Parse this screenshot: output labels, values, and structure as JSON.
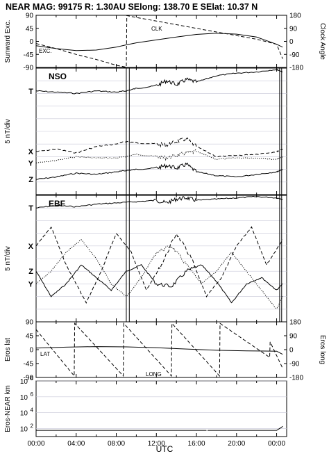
{
  "header": {
    "title": "NEAR MAG: 99175  R: 1.30AU  SElong: 138.70 E  SElat:  10.37 N"
  },
  "colors": {
    "line": "#000000",
    "grid": "#c8c8d8",
    "background": "#ffffff"
  },
  "chart_data": [
    {
      "type": "line",
      "panel": "sunward-clock",
      "ylabel_left": "Sunward Exc.",
      "ylabel_right": "Clock Angle",
      "yticks_left": [
        "90",
        "45",
        "0",
        "-45",
        "-90"
      ],
      "yticks_right": [
        "180",
        "90",
        "0",
        "-90",
        "-180"
      ],
      "ylim_left": [
        -90,
        90
      ],
      "ylim_right": [
        -180,
        180
      ],
      "xlim": [
        0,
        25
      ],
      "annotations": [
        "CLK",
        "EXC."
      ],
      "series": [
        {
          "name": "EXC.",
          "style": "solid",
          "x": [
            0,
            2,
            4,
            6,
            8,
            9,
            10,
            12,
            14,
            16,
            18,
            20,
            22,
            24,
            24.6
          ],
          "y": [
            -15,
            -25,
            -32,
            -30,
            -20,
            -12,
            -5,
            5,
            15,
            24,
            28,
            25,
            15,
            -10,
            -20
          ]
        },
        {
          "name": "CLK",
          "style": "dashed",
          "x": [
            0,
            2,
            4,
            6,
            8,
            9.0,
            9.05,
            10,
            12,
            14,
            16,
            18,
            20,
            22,
            24,
            24.6
          ],
          "y": [
            -15,
            -50,
            -90,
            -125,
            -165,
            -178,
            178,
            165,
            140,
            115,
            90,
            65,
            40,
            15,
            -20,
            -120
          ]
        }
      ]
    },
    {
      "type": "line",
      "panel": "NSO",
      "label": "NSO",
      "ylabel_left": "5 nT/div",
      "component_labels": [
        "T",
        "X",
        "Y",
        "Z"
      ],
      "xlim": [
        0,
        25
      ],
      "series": [
        {
          "name": "T",
          "style": "solid",
          "x": [
            0,
            2,
            4,
            6,
            8,
            9,
            10,
            12,
            13,
            14,
            15,
            16,
            18,
            20,
            22,
            24,
            24.6
          ],
          "y": [
            -18,
            -19,
            -20,
            -18,
            -19,
            -18,
            -16,
            -14,
            -10,
            -13,
            -9,
            -11,
            -6,
            -4,
            -3,
            -1,
            -3
          ]
        },
        {
          "name": "X",
          "style": "dashed",
          "x": [
            0,
            2,
            4,
            6,
            8,
            9,
            10,
            12,
            13,
            14,
            15,
            16,
            18,
            20,
            22,
            24,
            24.6
          ],
          "y": [
            -66,
            -64,
            -67,
            -62,
            -60,
            -58,
            -59,
            -60,
            -61,
            -58,
            -56,
            -62,
            -70,
            -69,
            -68,
            -66,
            -64
          ]
        },
        {
          "name": "Y",
          "style": "dotted",
          "x": [
            0,
            2,
            4,
            6,
            8,
            9,
            10,
            12,
            13,
            14,
            15,
            16,
            18,
            20,
            22,
            24,
            24.6
          ],
          "y": [
            -75,
            -73,
            -70,
            -71,
            -71,
            -70,
            -68,
            -70,
            -71,
            -69,
            -67,
            -66,
            -72,
            -71,
            -71,
            -72,
            -70
          ]
        },
        {
          "name": "Z",
          "style": "solid",
          "x": [
            0,
            2,
            4,
            6,
            8,
            9,
            10,
            12,
            13,
            14,
            15,
            16,
            18,
            20,
            22,
            24,
            24.6
          ],
          "y": [
            -88,
            -86,
            -83,
            -84,
            -82,
            -81,
            -80,
            -79,
            -77,
            -79,
            -76,
            -82,
            -85,
            -86,
            -84,
            -82,
            -80
          ]
        }
      ]
    },
    {
      "type": "line",
      "panel": "EBF",
      "label": "EBF",
      "ylabel_left": "5 nT/div",
      "component_labels": [
        "T",
        "X",
        "Y",
        "Z"
      ],
      "xlim": [
        0,
        25
      ],
      "series": [
        {
          "name": "T",
          "style": "solid",
          "x": [
            0,
            2,
            4,
            6,
            8,
            10,
            12,
            13,
            14,
            15,
            16,
            18,
            20,
            22,
            24,
            24.6
          ],
          "y": [
            -10,
            -8,
            -9,
            -7,
            -6,
            -5,
            -4,
            -6,
            -3,
            -2,
            -4,
            -3,
            -2,
            -1,
            -2,
            -3
          ]
        },
        {
          "name": "X",
          "style": "dashed",
          "x": [
            0,
            1.5,
            3,
            5,
            6.5,
            8,
            9.5,
            11,
            12.5,
            14,
            15.5,
            17,
            18.5,
            20,
            21.5,
            23,
            24.6
          ],
          "y": [
            -40,
            -25,
            -55,
            -85,
            -60,
            -30,
            -45,
            -75,
            -55,
            -30,
            -50,
            -80,
            -65,
            -40,
            -25,
            -55,
            -35
          ]
        },
        {
          "name": "Y",
          "style": "dotted",
          "x": [
            0,
            1.5,
            3,
            4.5,
            6,
            7.5,
            9,
            10.5,
            12,
            13.5,
            15,
            16.5,
            18,
            19.5,
            21,
            22.5,
            24,
            24.6
          ],
          "y": [
            -70,
            -60,
            -45,
            -35,
            -50,
            -70,
            -80,
            -65,
            -45,
            -40,
            -55,
            -70,
            -60,
            -45,
            -60,
            -75,
            -90,
            -80
          ]
        },
        {
          "name": "Z",
          "style": "solid",
          "x": [
            0,
            1.5,
            3,
            4.5,
            6,
            7.5,
            9,
            10.5,
            12,
            13.5,
            15,
            16.5,
            18,
            19.5,
            21,
            22.5,
            24,
            24.6
          ],
          "y": [
            -60,
            -80,
            -70,
            -55,
            -65,
            -75,
            -60,
            -55,
            -70,
            -72,
            -60,
            -55,
            -68,
            -85,
            -70,
            -65,
            -75,
            -70
          ]
        }
      ]
    },
    {
      "type": "line",
      "panel": "eros-lat-long",
      "ylabel_left": "Eros lat",
      "ylabel_right": "Eros long",
      "yticks_left": [
        "90",
        "45",
        "0",
        "-45",
        "-90"
      ],
      "yticks_right": [
        "180",
        "90",
        "0",
        "-90",
        "-180"
      ],
      "ylim_left": [
        -90,
        90
      ],
      "ylim_right": [
        -180,
        180
      ],
      "xlim": [
        0,
        25
      ],
      "annotations": [
        "LAT",
        "LONG"
      ],
      "series": [
        {
          "name": "LAT",
          "style": "solid",
          "x": [
            0,
            3,
            6,
            9,
            12,
            15,
            18,
            21,
            24,
            24.6
          ],
          "y": [
            5,
            8,
            10,
            9,
            6,
            2,
            -2,
            -4,
            -5,
            -15
          ]
        },
        {
          "name": "LONG",
          "style": "dashed",
          "x": [
            0,
            3.8,
            3.85,
            8.7,
            8.75,
            13.5,
            13.55,
            18.3,
            18.35,
            23.3,
            23.35,
            24.6
          ],
          "y": [
            130,
            -170,
            170,
            -170,
            170,
            -170,
            170,
            -170,
            170,
            -50,
            50,
            -120
          ]
        }
      ]
    },
    {
      "type": "line",
      "panel": "eros-near-distance",
      "ylabel_left": "Eros-NEAR km",
      "yscale": "log",
      "yticks_left": [
        "10^8",
        "10^6",
        "10^4",
        "10^2"
      ],
      "ylim_left": [
        10,
        100000000
      ],
      "xlim": [
        0,
        25
      ],
      "xticks": [
        "00:00",
        "04:00",
        "08:00",
        "12:00",
        "16:00",
        "20:00",
        "00:00"
      ],
      "xlabel": "UTC",
      "series": [
        {
          "name": "distance",
          "style": "solid",
          "x": [
            0,
            17.0,
            17.1,
            24.0,
            24.5,
            24.6
          ],
          "y": [
            60,
            60,
            60,
            60,
            150,
            200
          ]
        }
      ]
    }
  ]
}
